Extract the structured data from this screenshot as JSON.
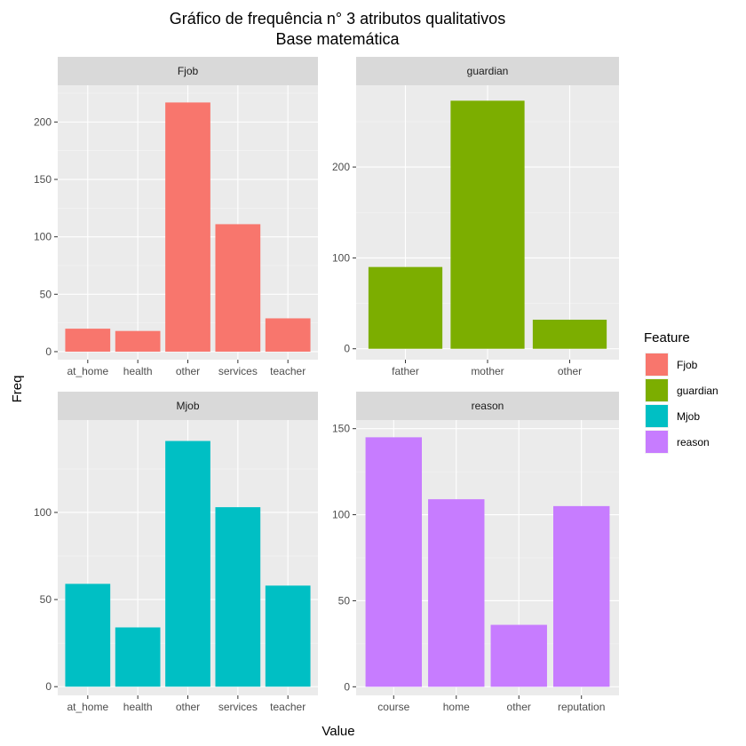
{
  "chart_data": {
    "type": "bar",
    "title": "Gráfico de frequência n° 3 atributos qualitativos",
    "subtitle": "Base matemática",
    "xlabel": "Value",
    "ylabel": "Freq",
    "grid": true,
    "legend": {
      "title": "Feature",
      "placement": "right",
      "entries": [
        {
          "label": "Fjob",
          "color": "#F8766D"
        },
        {
          "label": "guardian",
          "color": "#7CAE00"
        },
        {
          "label": "Mjob",
          "color": "#00BFC4"
        },
        {
          "label": "reason",
          "color": "#C77CFF"
        }
      ]
    },
    "panels": [
      {
        "name": "Fjob",
        "color": "#F8766D",
        "categories": [
          "at_home",
          "health",
          "other",
          "services",
          "teacher"
        ],
        "values": [
          20,
          18,
          217,
          111,
          29
        ],
        "ylim": [
          -7,
          232
        ],
        "yticks": [
          0,
          50,
          100,
          150,
          200
        ]
      },
      {
        "name": "guardian",
        "color": "#7CAE00",
        "categories": [
          "father",
          "mother",
          "other"
        ],
        "values": [
          90,
          273,
          32
        ],
        "ylim": [
          -12,
          290
        ],
        "yticks": [
          0,
          100,
          200
        ]
      },
      {
        "name": "Mjob",
        "color": "#00BFC4",
        "categories": [
          "at_home",
          "health",
          "other",
          "services",
          "teacher"
        ],
        "values": [
          59,
          34,
          141,
          103,
          58
        ],
        "ylim": [
          -5,
          153
        ],
        "yticks": [
          0,
          50,
          100
        ]
      },
      {
        "name": "reason",
        "color": "#C77CFF",
        "categories": [
          "course",
          "home",
          "other",
          "reputation"
        ],
        "values": [
          145,
          109,
          36,
          105
        ],
        "ylim": [
          -5,
          155
        ],
        "yticks": [
          0,
          50,
          100,
          150
        ]
      }
    ]
  }
}
